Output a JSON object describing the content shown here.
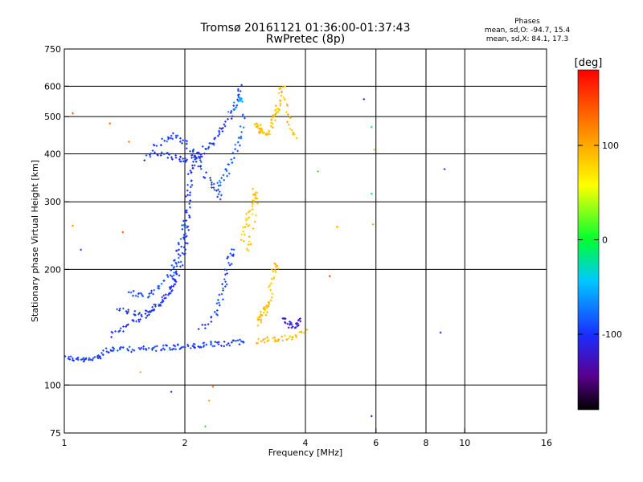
{
  "header": {
    "title_line1": "Tromsø 20161121 01:36:00-01:37:43",
    "title_line2": "RwPretec (8p)"
  },
  "stats": {
    "heading": "Phases",
    "line_o": "mean, sd,O: -94.7, 15.4",
    "line_x": "mean, sd,X:  84.1, 17.3"
  },
  "colorbar": {
    "unit": "[deg]",
    "ticks": [
      {
        "value": 100,
        "label": "100"
      },
      {
        "value": 0,
        "label": "0"
      },
      {
        "value": -100,
        "label": "-100"
      }
    ],
    "range": [
      -180,
      180
    ]
  },
  "chart_data": {
    "type": "scatter",
    "title": "Tromsø 20161121 01:36:00-01:37:43",
    "subtitle": "RwPretec (8p)",
    "xlabel": "Frequency [MHz]",
    "ylabel": "Stationary phase Virtual Height [km]",
    "x_scale": "log",
    "y_scale": "log",
    "xlim": [
      1,
      16
    ],
    "ylim": [
      75,
      750
    ],
    "grid": true,
    "x_ticks": [
      {
        "value": 1,
        "label": "1"
      },
      {
        "value": 2,
        "label": "2"
      },
      {
        "value": 4,
        "label": "4"
      },
      {
        "value": 6,
        "label": "6"
      },
      {
        "value": 8,
        "label": "8"
      },
      {
        "value": 10,
        "label": "10"
      },
      {
        "value": 16,
        "label": "16"
      }
    ],
    "y_ticks": [
      {
        "value": 75,
        "label": "75"
      },
      {
        "value": 100,
        "label": "100"
      },
      {
        "value": 200,
        "label": "200"
      },
      {
        "value": 300,
        "label": "300"
      },
      {
        "value": 400,
        "label": "400"
      },
      {
        "value": 500,
        "label": "500"
      },
      {
        "value": 600,
        "label": "600"
      },
      {
        "value": 750,
        "label": "750"
      }
    ],
    "x_grid": [
      2,
      4,
      6,
      8,
      10
    ],
    "y_grid": [
      100,
      200,
      300,
      400,
      500,
      600
    ],
    "color_scale": "phase [deg], rainbow from -180 (black) to 180 (red)",
    "traces": [
      {
        "name": "",
        "phase": -95,
        "points": [
          [
            1.0,
            118
          ],
          [
            1.05,
            117
          ],
          [
            1.1,
            116
          ],
          [
            1.15,
            116
          ],
          [
            1.2,
            118
          ],
          [
            1.25,
            121
          ],
          [
            1.3,
            124
          ],
          [
            1.35,
            123
          ],
          [
            1.45,
            124
          ],
          [
            1.55,
            124
          ],
          [
            1.65,
            124
          ],
          [
            1.75,
            125
          ],
          [
            1.85,
            125
          ],
          [
            1.95,
            126
          ],
          [
            2.05,
            126
          ],
          [
            2.15,
            126
          ],
          [
            2.25,
            127
          ],
          [
            2.4,
            128
          ],
          [
            2.55,
            128
          ],
          [
            2.7,
            129
          ],
          [
            2.85,
            130
          ]
        ]
      },
      {
        "name": "",
        "phase": -100,
        "points": [
          [
            1.3,
            135
          ],
          [
            1.4,
            141
          ],
          [
            1.5,
            147
          ],
          [
            1.6,
            152
          ],
          [
            1.7,
            160
          ],
          [
            1.8,
            170
          ],
          [
            1.85,
            182
          ],
          [
            1.9,
            195
          ],
          [
            1.95,
            210
          ],
          [
            2.0,
            230
          ],
          [
            2.02,
            255
          ],
          [
            2.03,
            280
          ],
          [
            2.04,
            310
          ],
          [
            2.06,
            340
          ],
          [
            2.1,
            370
          ],
          [
            2.15,
            390
          ],
          [
            2.2,
            400
          ]
        ]
      },
      {
        "name": "",
        "phase": -90,
        "points": [
          [
            1.45,
            175
          ],
          [
            1.55,
            170
          ],
          [
            1.65,
            172
          ],
          [
            1.75,
            182
          ],
          [
            1.85,
            195
          ],
          [
            1.9,
            210
          ],
          [
            1.95,
            230
          ],
          [
            1.98,
            250
          ],
          [
            2.0,
            270
          ]
        ]
      },
      {
        "name": "",
        "phase": -98,
        "points": [
          [
            1.35,
            158
          ],
          [
            1.45,
            155
          ],
          [
            1.55,
            152
          ],
          [
            1.65,
            156
          ],
          [
            1.75,
            165
          ],
          [
            1.85,
            178
          ],
          [
            1.92,
            195
          ]
        ]
      },
      {
        "name": "",
        "phase": -92,
        "points": [
          [
            2.2,
            140
          ],
          [
            2.35,
            150
          ],
          [
            2.45,
            165
          ],
          [
            2.5,
            180
          ],
          [
            2.55,
            200
          ],
          [
            2.6,
            215
          ],
          [
            2.65,
            225
          ]
        ]
      },
      {
        "name": "",
        "phase": -100,
        "points": [
          [
            1.7,
            400
          ],
          [
            1.8,
            395
          ],
          [
            1.9,
            390
          ],
          [
            2.0,
            385
          ],
          [
            2.1,
            390
          ],
          [
            2.2,
            405
          ],
          [
            2.3,
            420
          ],
          [
            2.4,
            440
          ],
          [
            2.5,
            470
          ],
          [
            2.6,
            500
          ],
          [
            2.7,
            560
          ],
          [
            2.75,
            610
          ]
        ]
      },
      {
        "name": "",
        "phase": -95,
        "points": [
          [
            1.6,
            390
          ],
          [
            1.7,
            420
          ],
          [
            1.8,
            440
          ],
          [
            1.9,
            445
          ],
          [
            2.0,
            430
          ],
          [
            2.1,
            400
          ],
          [
            2.2,
            370
          ],
          [
            2.3,
            340
          ],
          [
            2.4,
            320
          ],
          [
            2.45,
            305
          ]
        ]
      },
      {
        "name": "",
        "phase": -80,
        "points": [
          [
            2.4,
            330
          ],
          [
            2.5,
            350
          ],
          [
            2.6,
            375
          ],
          [
            2.7,
            410
          ],
          [
            2.75,
            450
          ],
          [
            2.8,
            520
          ]
        ]
      },
      {
        "name": "",
        "phase": -60,
        "points": [
          [
            2.6,
            520
          ],
          [
            2.7,
            540
          ],
          [
            2.8,
            560
          ]
        ]
      },
      {
        "name": "",
        "phase": 85,
        "points": [
          [
            2.8,
            240
          ],
          [
            2.85,
            260
          ],
          [
            2.9,
            280
          ],
          [
            2.95,
            300
          ],
          [
            3.0,
            320
          ],
          [
            3.0,
            300
          ],
          [
            2.9,
            235
          ],
          [
            2.85,
            220
          ]
        ]
      },
      {
        "name": "",
        "phase": 90,
        "points": [
          [
            3.0,
            480
          ],
          [
            3.05,
            470
          ],
          [
            3.1,
            460
          ],
          [
            3.15,
            455
          ],
          [
            3.2,
            450
          ],
          [
            3.3,
            470
          ],
          [
            3.35,
            500
          ],
          [
            3.4,
            520
          ],
          [
            3.45,
            560
          ],
          [
            3.5,
            600
          ],
          [
            3.6,
            520
          ],
          [
            3.7,
            460
          ],
          [
            3.8,
            440
          ]
        ]
      },
      {
        "name": "",
        "phase": 90,
        "points": [
          [
            3.05,
            145
          ],
          [
            3.1,
            150
          ],
          [
            3.15,
            155
          ],
          [
            3.2,
            160
          ],
          [
            3.25,
            165
          ],
          [
            3.3,
            190
          ],
          [
            3.35,
            200
          ],
          [
            3.4,
            205
          ]
        ]
      },
      {
        "name": "",
        "phase": 90,
        "points": [
          [
            3.0,
            130
          ],
          [
            3.2,
            131
          ],
          [
            3.4,
            132
          ],
          [
            3.6,
            133
          ],
          [
            3.8,
            135
          ],
          [
            4.0,
            138
          ]
        ]
      },
      {
        "name": "",
        "phase": -120,
        "points": [
          [
            3.5,
            150
          ],
          [
            3.6,
            145
          ],
          [
            3.7,
            142
          ],
          [
            3.8,
            145
          ],
          [
            3.9,
            150
          ]
        ]
      }
    ],
    "isolated_points": [
      {
        "x": 1.05,
        "y": 510,
        "phase": 140
      },
      {
        "x": 1.3,
        "y": 480,
        "phase": 130
      },
      {
        "x": 1.45,
        "y": 430,
        "phase": 120
      },
      {
        "x": 1.05,
        "y": 260,
        "phase": 110
      },
      {
        "x": 1.1,
        "y": 225,
        "phase": -90
      },
      {
        "x": 1.4,
        "y": 250,
        "phase": 140
      },
      {
        "x": 1.55,
        "y": 108,
        "phase": 95
      },
      {
        "x": 1.85,
        "y": 96,
        "phase": -100
      },
      {
        "x": 2.35,
        "y": 99,
        "phase": 130
      },
      {
        "x": 2.3,
        "y": 91,
        "phase": 100
      },
      {
        "x": 2.25,
        "y": 78,
        "phase": 0
      },
      {
        "x": 4.3,
        "y": 360,
        "phase": 0
      },
      {
        "x": 4.8,
        "y": 258,
        "phase": 100
      },
      {
        "x": 5.6,
        "y": 555,
        "phase": -130
      },
      {
        "x": 5.85,
        "y": 470,
        "phase": -10
      },
      {
        "x": 5.95,
        "y": 410,
        "phase": 95
      },
      {
        "x": 5.9,
        "y": 262,
        "phase": 100
      },
      {
        "x": 5.85,
        "y": 315,
        "phase": -10
      },
      {
        "x": 8.9,
        "y": 365,
        "phase": -110
      },
      {
        "x": 8.7,
        "y": 137,
        "phase": -110
      },
      {
        "x": 5.85,
        "y": 83,
        "phase": -110
      },
      {
        "x": 4.6,
        "y": 192,
        "phase": 150
      }
    ]
  }
}
